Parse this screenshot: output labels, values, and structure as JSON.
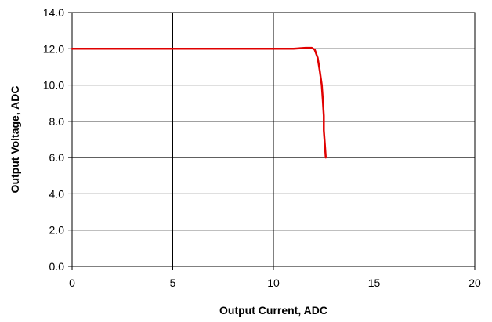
{
  "chart_data": {
    "type": "line",
    "title": "",
    "xlabel": "Output Current, ADC",
    "ylabel": "Output Voltage, ADC",
    "xlim": [
      0,
      20
    ],
    "ylim": [
      0,
      14
    ],
    "x_ticks": [
      "0",
      "5",
      "10",
      "15",
      "20"
    ],
    "y_ticks": [
      "0.0",
      "2.0",
      "4.0",
      "6.0",
      "8.0",
      "10.0",
      "12.0",
      "14.0"
    ],
    "x_tick_values": [
      0,
      5,
      10,
      15,
      20
    ],
    "y_tick_values": [
      0,
      2,
      4,
      6,
      8,
      10,
      12,
      14
    ],
    "grid": true,
    "series": [
      {
        "color": "#e00000",
        "x": [
          0,
          11.0,
          11.6,
          11.9,
          12.05,
          12.2,
          12.3,
          12.4,
          12.45,
          12.5,
          12.5,
          12.55,
          12.6
        ],
        "y": [
          12.0,
          12.0,
          12.05,
          12.05,
          11.95,
          11.5,
          10.8,
          10.0,
          9.2,
          8.3,
          7.5,
          6.8,
          6.0
        ]
      }
    ]
  }
}
